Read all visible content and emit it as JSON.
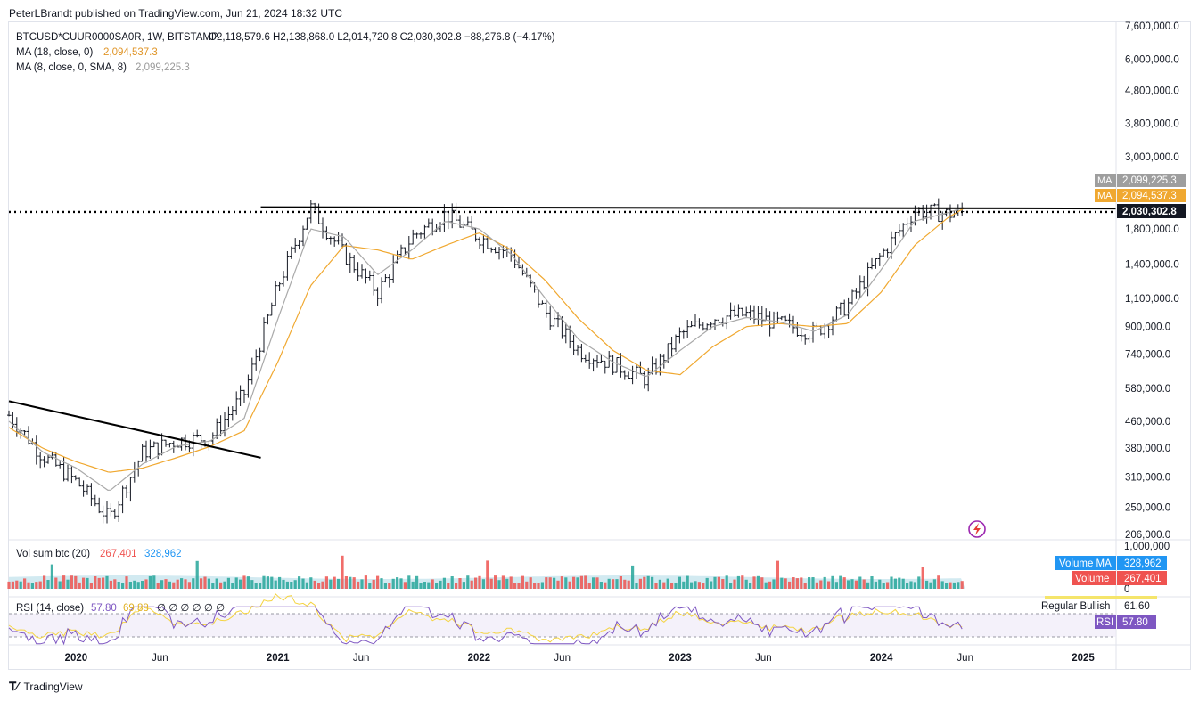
{
  "header": {
    "credit": "PeterLBrandt published on TradingView.com, Jun 21, 2024 18:32 UTC"
  },
  "legend": {
    "symbol": "BTCUSD*CUUR0000SA0R, 1W, BITSTAMP",
    "ohlc": "O2,118,579.6  H2,138,868.0  L2,014,720.8  C2,030,302.8  −88,276.8 (−4.17%)",
    "ma18_label": "MA (18, close, 0)",
    "ma18_value": "2,094,537.3",
    "ma8_label": "MA (8, close, 0, SMA, 8)",
    "ma8_value": "2,099,225.3"
  },
  "colors": {
    "up": "#131722",
    "ma18": "#f0a830",
    "ma8": "#a9a9a9",
    "vol_up": "#26a69a",
    "vol_down": "#ef5350",
    "vol_ma": "#add8e6",
    "rsi_line": "#7e57c2",
    "rsi_ma": "#f5d442",
    "rsi_band": "#ede7f6",
    "vol_badge": "#2196f3"
  },
  "price_axis": {
    "ticks": [
      "7,600,000.0",
      "6,000,000.0",
      "4,800,000.0",
      "3,800,000.0",
      "3,000,000.0",
      "1,800,000.0",
      "1,400,000.0",
      "1,100,000.0",
      "900,000.0",
      "740,000.0",
      "580,000.0",
      "460,000.0",
      "380,000.0",
      "310,000.0",
      "250,000.0",
      "206,000.0"
    ],
    "tick_values": [
      7600000,
      6000000,
      4800000,
      3800000,
      3000000,
      1800000,
      1400000,
      1100000,
      900000,
      740000,
      580000,
      460000,
      380000,
      310000,
      250000,
      206000
    ],
    "scale": "log"
  },
  "badges": {
    "ma8_tag": "MA",
    "ma8_value": "2,099,225.3",
    "ma18_tag": "MA",
    "ma18_value": "2,094,537.3",
    "last_value": "2,030,302.8"
  },
  "volume": {
    "label": "Vol sum btc (20)",
    "value_a": "267,401",
    "value_b": "328,962",
    "axis_ticks": [
      "1,000,000",
      "0"
    ],
    "ma_badge_label": "Volume MA",
    "ma_badge_value": "328,962",
    "vol_badge_label": "Volume",
    "vol_badge_value": "267,401"
  },
  "rsi": {
    "label": "RSI (14, close)",
    "value_a": "57.80",
    "value_b": "69.88",
    "extras": "∅ ∅ ∅ ∅ ∅ ∅",
    "regular_bullish": "Regular Bullish",
    "regular_bullish_value": "61.60",
    "badge_label": "RSI",
    "badge_value": "57.80",
    "upper_band": 70,
    "lower_band": 30
  },
  "time_axis": {
    "labels": [
      "2020",
      "Jun",
      "2021",
      "Jun",
      "2022",
      "Jun",
      "2023",
      "Jun",
      "2024",
      "Jun",
      "2025"
    ]
  },
  "footer": {
    "brand": "TradingView"
  },
  "chart_data": {
    "type": "ohlc",
    "interval": "1W",
    "scale": "log",
    "ylim": [
      200000,
      7800000
    ],
    "x": [
      "2019-09",
      "2019-11",
      "2020-01",
      "2020-03",
      "2020-05",
      "2020-07",
      "2020-09",
      "2020-11",
      "2021-01",
      "2021-03",
      "2021-05",
      "2021-07",
      "2021-09",
      "2021-11",
      "2022-01",
      "2022-03",
      "2022-05",
      "2022-07",
      "2022-09",
      "2022-11",
      "2023-01",
      "2023-03",
      "2023-05",
      "2023-07",
      "2023-09",
      "2023-11",
      "2024-01",
      "2024-03",
      "2024-05",
      "2024-06"
    ],
    "series": [
      {
        "name": "BTCUSD*CUUR0000SA0R",
        "values": [
          480000,
          360000,
          300000,
          230000,
          370000,
          400000,
          410000,
          560000,
          1200000,
          2100000,
          1500000,
          1150000,
          1700000,
          2000000,
          1700000,
          1500000,
          1000000,
          760000,
          690000,
          620000,
          850000,
          960000,
          980000,
          920000,
          860000,
          1050000,
          1500000,
          2050000,
          2000000,
          2030302.8
        ]
      },
      {
        "name": "MA (18, close, 0)",
        "values": [
          440000,
          380000,
          345000,
          320000,
          330000,
          355000,
          385000,
          430000,
          700000,
          1200000,
          1600000,
          1550000,
          1450000,
          1600000,
          1750000,
          1550000,
          1250000,
          950000,
          760000,
          660000,
          640000,
          780000,
          900000,
          920000,
          900000,
          920000,
          1150000,
          1600000,
          1950000,
          2094537.3
        ]
      },
      {
        "name": "MA (8, close, 0, SMA, 8)",
        "values": [
          460000,
          370000,
          330000,
          280000,
          340000,
          385000,
          400000,
          470000,
          950000,
          1800000,
          1700000,
          1300000,
          1550000,
          1900000,
          1800000,
          1500000,
          1100000,
          820000,
          700000,
          630000,
          760000,
          900000,
          960000,
          930000,
          870000,
          980000,
          1350000,
          1900000,
          2020000,
          2099225.3
        ]
      }
    ],
    "annotations": [
      {
        "kind": "trendline",
        "from": [
          "2019-09",
          530000
        ],
        "to": [
          "2020-12",
          355000
        ]
      },
      {
        "kind": "trendline",
        "from": [
          "2020-12",
          2100000
        ],
        "to": [
          "2025-03",
          2080000
        ]
      },
      {
        "kind": "horizontal-dotted",
        "value": 2030302.8
      }
    ]
  }
}
